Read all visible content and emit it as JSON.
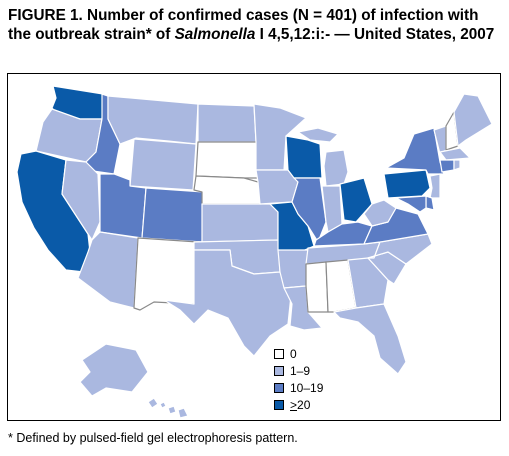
{
  "title": {
    "prefix": "FIGURE 1. Number of confirmed cases (N = 401) of infection with the outbreak strain* of ",
    "organism": "Salmonella",
    "suffix": " I 4,5,12:i:- — United States, 2007"
  },
  "colors": {
    "c0": "#ffffff",
    "c1": "#aab8e0",
    "c2": "#5b7cc4",
    "c3": "#0a5aa8",
    "stroke": "#ffffff"
  },
  "legend": {
    "items": [
      {
        "label": "0",
        "color_key": "c0"
      },
      {
        "label": "1–9",
        "color_key": "c1"
      },
      {
        "label": "10–19",
        "color_key": "c2"
      },
      {
        "label": ">20",
        "color_key": "c3",
        "underline_first": true
      }
    ]
  },
  "footnote": "* Defined by pulsed-field gel electrophoresis pattern.",
  "states": {
    "WA": "c3",
    "OR": "c1",
    "CA": "c3",
    "ID": "c2",
    "NV": "c1",
    "MT": "c1",
    "WY": "c1",
    "UT": "c2",
    "AZ": "c1",
    "CO": "c2",
    "NM": "c0",
    "ND": "c1",
    "SD": "c0",
    "NE": "c0",
    "KS": "c1",
    "OK": "c1",
    "TX": "c1",
    "MN": "c1",
    "IA": "c1",
    "MO": "c3",
    "AR": "c1",
    "LA": "c1",
    "WI": "c3",
    "IL": "c2",
    "MI": "c1",
    "IN": "c1",
    "OH": "c3",
    "KY": "c2",
    "TN": "c1",
    "MS": "c0",
    "AL": "c0",
    "GA": "c1",
    "FL": "c1",
    "SC": "c1",
    "NC": "c1",
    "VA": "c2",
    "WV": "c1",
    "PA": "c3",
    "NY": "c2",
    "VT": "c1",
    "NH": "c0",
    "ME": "c1",
    "MA": "c1",
    "CT": "c2",
    "RI": "c1",
    "NJ": "c1",
    "DE": "c2",
    "MD": "c2",
    "AK": "c1",
    "HI": "c1"
  }
}
